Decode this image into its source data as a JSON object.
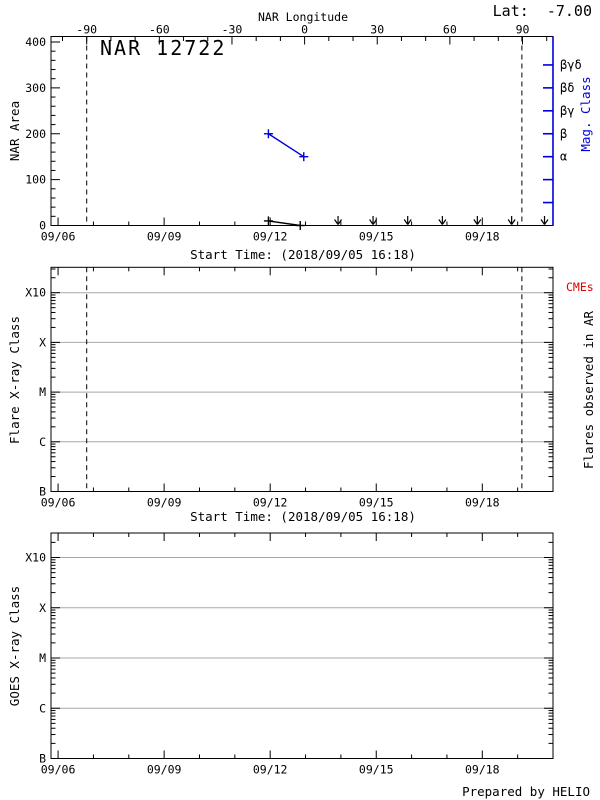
{
  "header": {
    "lat_label": "Lat:  -7.00",
    "footer": "Prepared by HELIO"
  },
  "colors": {
    "series_black": "#000000",
    "mag_blue": "#0000dd",
    "cme_red": "#e00000",
    "gridline_gray": "#a8a8a8"
  },
  "chart_data": [
    {
      "id": "nar-area-panel",
      "type": "line",
      "title": "NAR 12722",
      "top_axis": {
        "label": "NAR Longitude",
        "tick_values": [
          -90,
          -60,
          -30,
          0,
          30,
          60,
          90
        ],
        "tick_labels": [
          "-90",
          "-60",
          "-30",
          "0",
          "30",
          "60",
          "90"
        ],
        "minor_step": 10
      },
      "x_axis": {
        "label": "Start Time: (2018/09/05 16:18)",
        "tick_days": [
          6,
          9,
          12,
          15,
          18
        ],
        "tick_labels": [
          "09/06",
          "09/09",
          "09/12",
          "09/15",
          "09/18"
        ],
        "minor_days": [
          7,
          8,
          10,
          11,
          13,
          14,
          16,
          17,
          19
        ],
        "range_days": [
          5.8,
          20.0
        ]
      },
      "y_axis": {
        "label": "NAR Area",
        "tick_values": [
          0,
          100,
          200,
          300,
          400
        ],
        "tick_labels": [
          "0",
          "100",
          "200",
          "300",
          "400"
        ],
        "minor_step": 20,
        "range": [
          0,
          412
        ]
      },
      "right_axis": {
        "label": "Mag. Class",
        "tick_values_area": [
          350,
          300,
          250,
          200,
          150,
          100,
          50
        ],
        "tick_labels": [
          "βγδ",
          "βδ",
          "βγ",
          "β",
          "α",
          "",
          ""
        ]
      },
      "vlines_days": [
        6.81,
        19.12
      ],
      "series": [
        {
          "name": "nar-area",
          "color": "#000000",
          "marker": "plus",
          "x_days": [
            11.95,
            12.85
          ],
          "values": [
            10,
            0
          ]
        },
        {
          "name": "mag-class",
          "color": "#0000dd",
          "marker": "plus",
          "x_days": [
            11.95,
            12.95
          ],
          "values_area": [
            200,
            150
          ],
          "class_labels": [
            "β",
            "α"
          ]
        }
      ],
      "no_data_arrow_days": [
        13.92,
        14.91,
        15.89,
        16.87,
        17.86,
        18.83,
        19.76
      ]
    },
    {
      "id": "flare-panel",
      "type": "line",
      "x_axis": {
        "label": "Start Time: (2018/09/05 16:18)",
        "tick_days": [
          6,
          9,
          12,
          15,
          18
        ],
        "tick_labels": [
          "09/06",
          "09/09",
          "09/12",
          "09/15",
          "09/18"
        ],
        "minor_days": [
          7,
          8,
          10,
          11,
          13,
          14,
          16,
          17,
          19
        ],
        "range_days": [
          5.8,
          20.0
        ]
      },
      "y_axis": {
        "label": "Flare X-ray Class",
        "tick_labels": [
          "B",
          "C",
          "M",
          "X",
          "X10"
        ],
        "log_decades": true
      },
      "gridlines_at": [
        "C",
        "M",
        "X",
        "X10"
      ],
      "right_text": {
        "cmes": "CMEs",
        "flares": "Flares observed in AR"
      },
      "vlines_days": [
        6.81,
        19.12
      ],
      "series": []
    },
    {
      "id": "goes-panel",
      "type": "line",
      "x_axis": {
        "tick_days": [
          6,
          9,
          12,
          15,
          18
        ],
        "tick_labels": [
          "09/06",
          "09/09",
          "09/12",
          "09/15",
          "09/18"
        ],
        "minor_days": [
          7,
          8,
          10,
          11,
          13,
          14,
          16,
          17,
          19
        ],
        "range_days": [
          5.8,
          20.0
        ]
      },
      "y_axis": {
        "label": "GOES X-ray Class",
        "tick_labels": [
          "B",
          "C",
          "M",
          "X",
          "X10"
        ],
        "log_decades": true
      },
      "gridlines_at": [
        "C",
        "M",
        "X",
        "X10"
      ],
      "vlines_days": [],
      "series": []
    }
  ]
}
